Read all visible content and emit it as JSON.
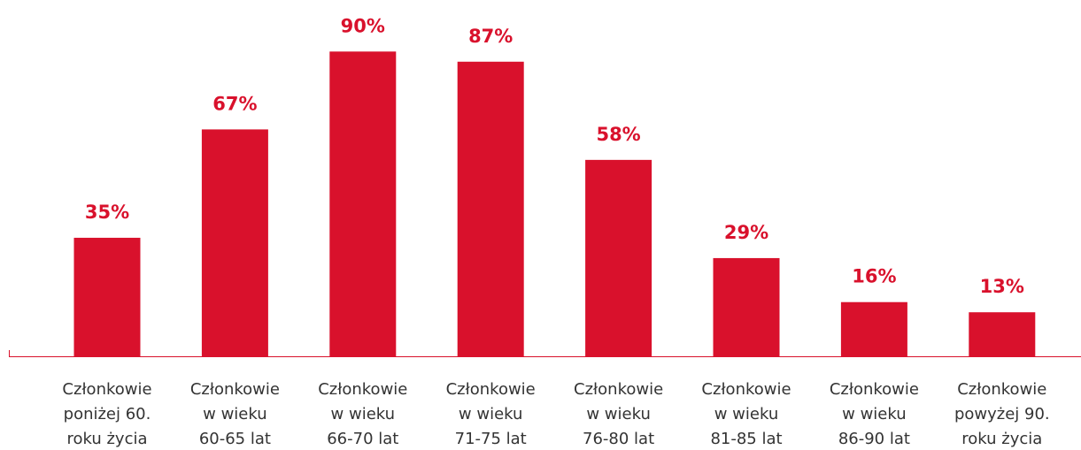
{
  "chart_data": {
    "type": "bar",
    "categories": [
      [
        "Członkowie",
        "poniżej 60.",
        "roku życia"
      ],
      [
        "Członkowie",
        "w wieku",
        "60-65 lat"
      ],
      [
        "Członkowie",
        "w wieku",
        "66-70 lat"
      ],
      [
        "Członkowie",
        "w wieku",
        "71-75 lat"
      ],
      [
        "Członkowie",
        "w wieku",
        "76-80 lat"
      ],
      [
        "Członkowie",
        "w wieku",
        "81-85 lat"
      ],
      [
        "Członkowie",
        "w wieku",
        "86-90 lat"
      ],
      [
        "Członkowie",
        "powyżej 90.",
        "roku życia"
      ]
    ],
    "values": [
      35,
      67,
      90,
      87,
      58,
      29,
      16,
      13
    ],
    "value_labels": [
      "35%",
      "67%",
      "90%",
      "87%",
      "58%",
      "29%",
      "16%",
      "13%"
    ],
    "color": "#d9112c"
  }
}
